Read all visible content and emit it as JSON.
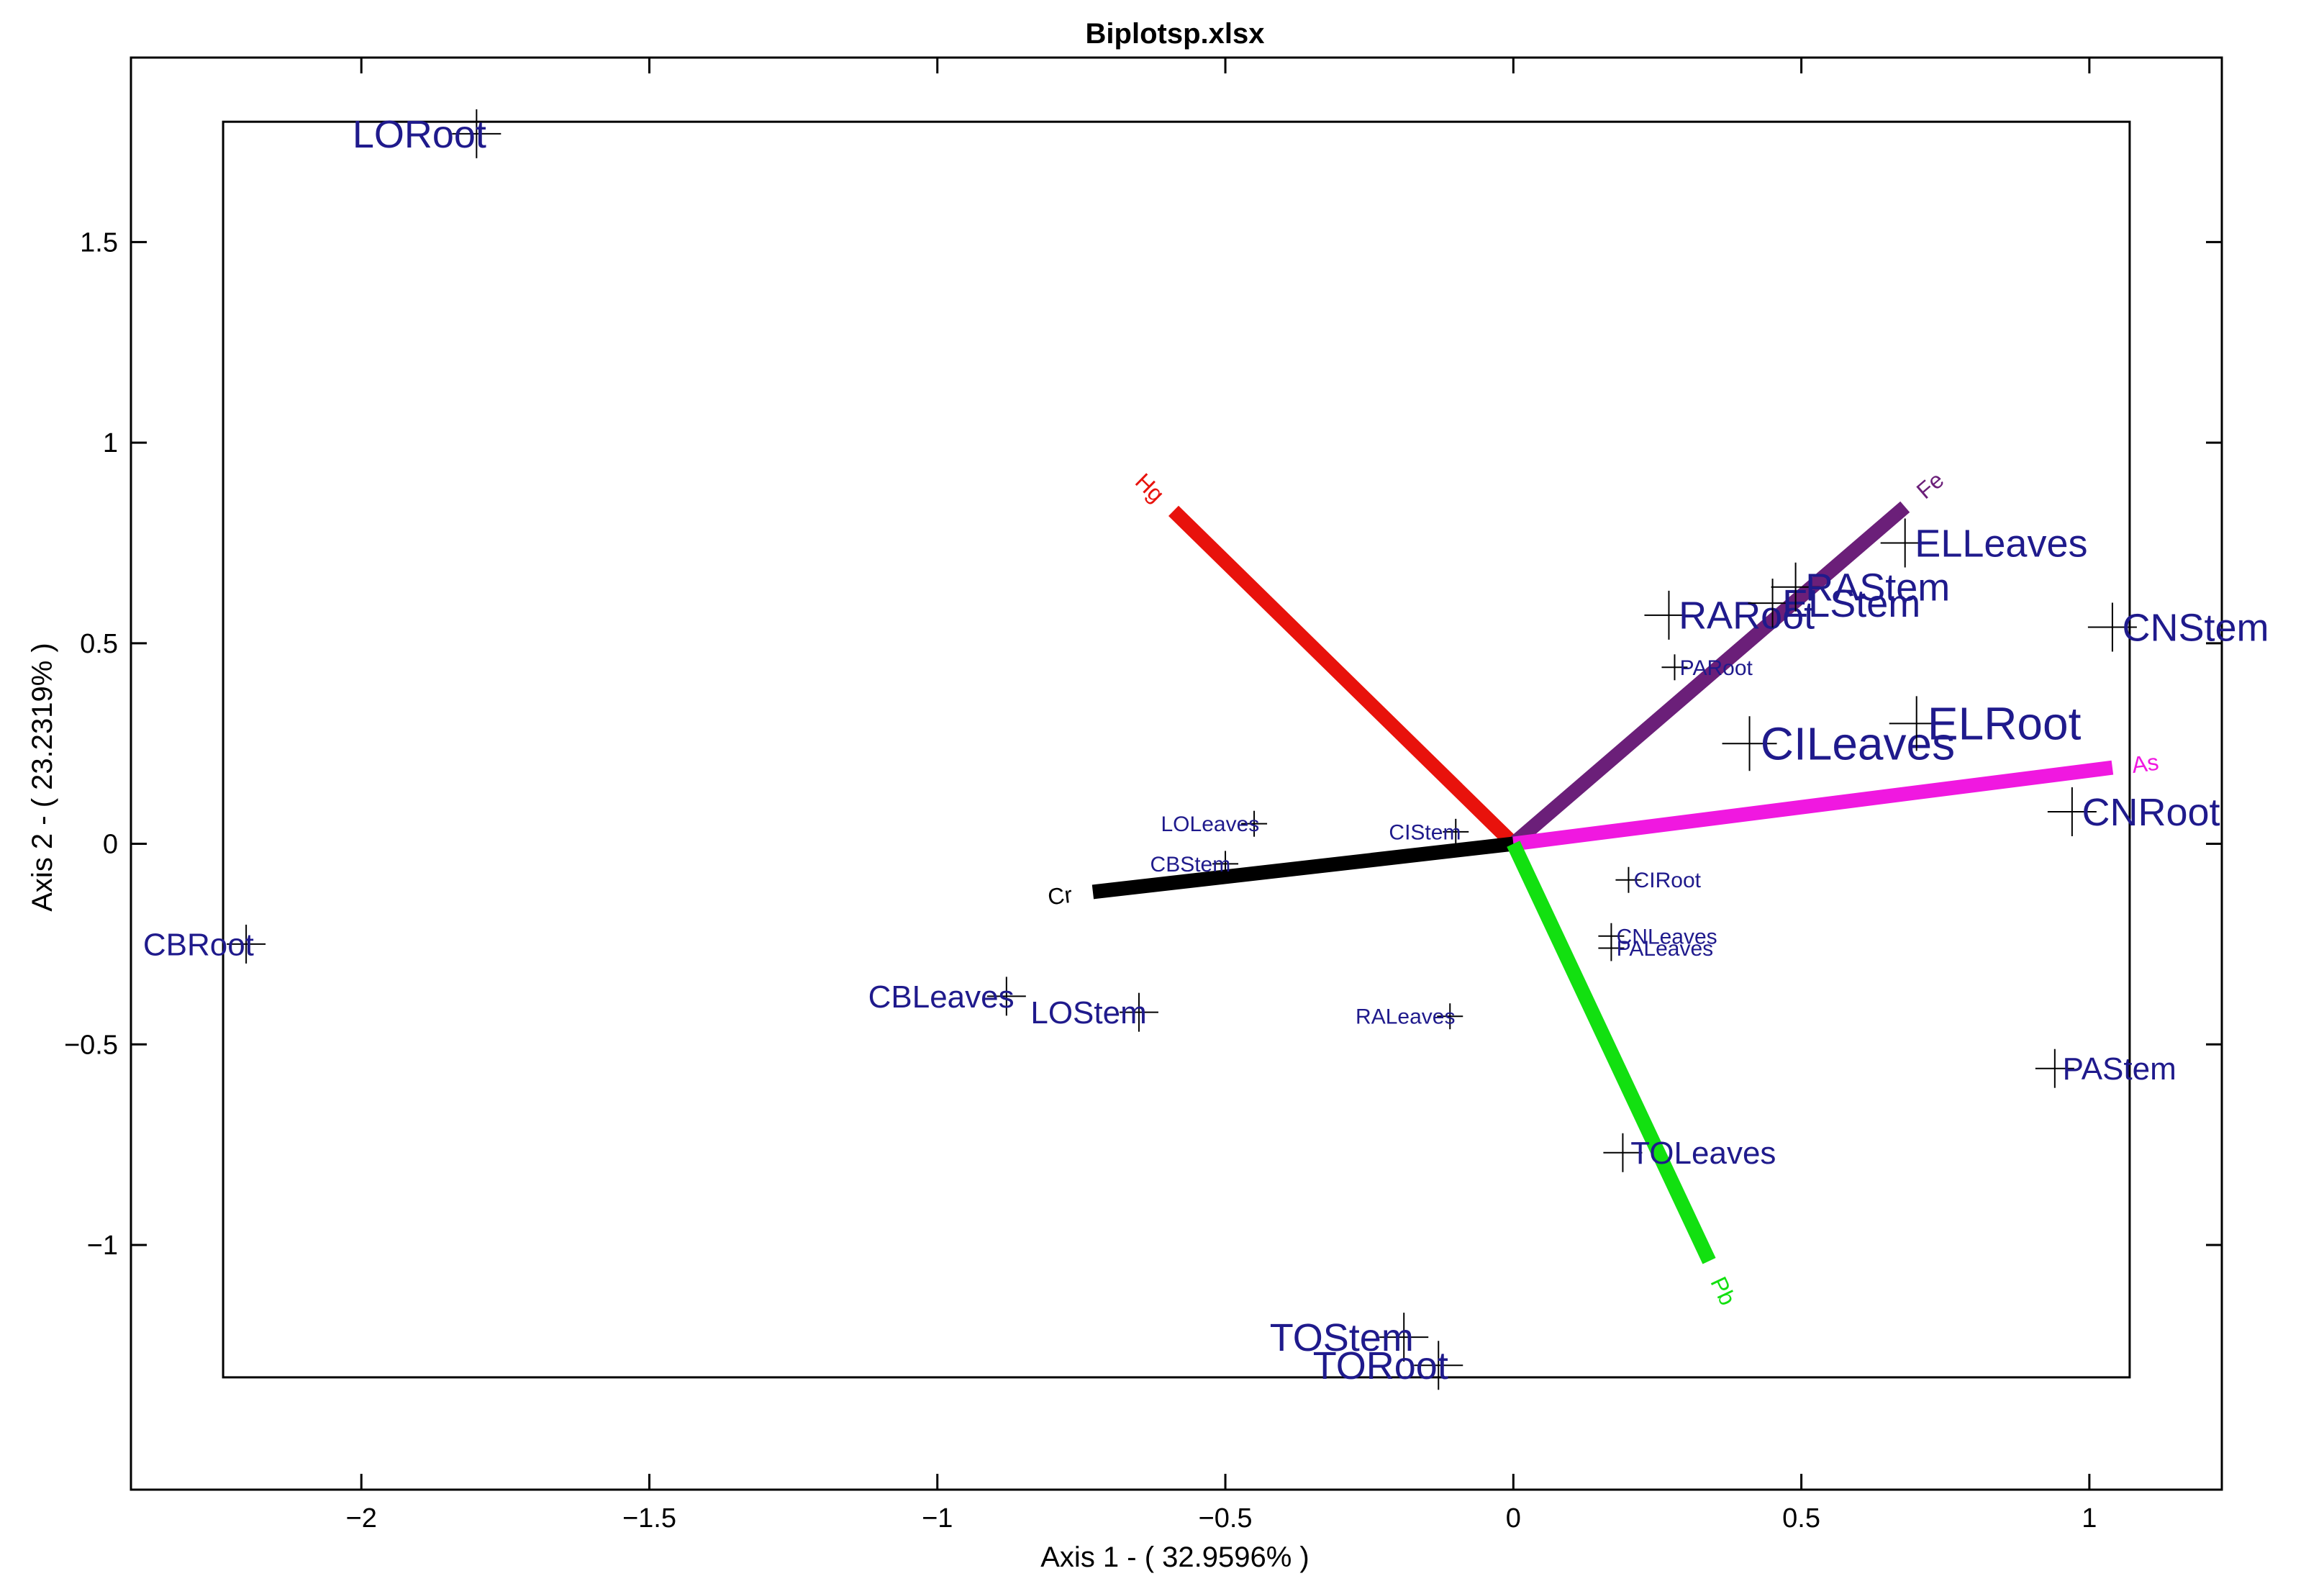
{
  "chart_data": {
    "type": "scatter",
    "title": "Biplotsp.xlsx",
    "xlabel": "Axis 1 - ( 32.9596% )",
    "ylabel": "Axis 2 - ( 23.2319% )",
    "xlim": [
      -2.4,
      1.23
    ],
    "ylim": [
      -1.61,
      1.96
    ],
    "x_ticks": [
      {
        "v": -2,
        "label": "−2"
      },
      {
        "v": -1.5,
        "label": "−1.5"
      },
      {
        "v": -1,
        "label": "−1"
      },
      {
        "v": -0.5,
        "label": "−0.5"
      },
      {
        "v": 0,
        "label": "0"
      },
      {
        "v": 0.5,
        "label": "0.5"
      },
      {
        "v": 1,
        "label": "1"
      }
    ],
    "y_ticks": [
      {
        "v": 1.5,
        "label": "1.5"
      },
      {
        "v": 1,
        "label": "1"
      },
      {
        "v": 0.5,
        "label": "0.5"
      },
      {
        "v": 0,
        "label": "0"
      },
      {
        "v": -0.5,
        "label": "−0.5"
      },
      {
        "v": -1,
        "label": "−1"
      }
    ],
    "inner_box": {
      "x": [
        -2.24,
        1.07
      ],
      "y": [
        -1.33,
        1.8
      ]
    },
    "grid": false,
    "label_color": "#1f1a8c",
    "points": [
      {
        "label": "LORoot",
        "x": -1.8,
        "y": 1.77,
        "size": "large"
      },
      {
        "label": "CBRoot",
        "x": -2.2,
        "y": -0.25,
        "size": "medium"
      },
      {
        "label": "CBLeaves",
        "x": -0.88,
        "y": -0.38,
        "size": "medium"
      },
      {
        "label": "LOStem",
        "x": -0.65,
        "y": -0.42,
        "size": "medium"
      },
      {
        "label": "LOLeaves",
        "x": -0.45,
        "y": 0.05,
        "size": "small"
      },
      {
        "label": "CBStem",
        "x": -0.5,
        "y": -0.05,
        "size": "small"
      },
      {
        "label": "CIStem",
        "x": -0.1,
        "y": 0.03,
        "size": "small"
      },
      {
        "label": "RALeaves",
        "x": -0.11,
        "y": -0.43,
        "size": "small"
      },
      {
        "label": "TOStem",
        "x": -0.19,
        "y": -1.23,
        "size": "large"
      },
      {
        "label": "TORoot",
        "x": -0.13,
        "y": -1.3,
        "size": "large"
      },
      {
        "label": "TOLeaves",
        "x": 0.19,
        "y": -0.77,
        "size": "medium"
      },
      {
        "label": "CIRoot",
        "x": 0.2,
        "y": -0.09,
        "size": "small"
      },
      {
        "label": "CNLeaves",
        "x": 0.17,
        "y": -0.23,
        "size": "small"
      },
      {
        "label": "PALeaves",
        "x": 0.17,
        "y": -0.26,
        "size": "small"
      },
      {
        "label": "PARoot",
        "x": 0.28,
        "y": 0.44,
        "size": "small"
      },
      {
        "label": "RARoot",
        "x": 0.27,
        "y": 0.57,
        "size": "large"
      },
      {
        "label": "ELStem",
        "x": 0.45,
        "y": 0.6,
        "size": "large"
      },
      {
        "label": "RAStem",
        "x": 0.49,
        "y": 0.64,
        "size": "large"
      },
      {
        "label": "CILeaves",
        "x": 0.41,
        "y": 0.25,
        "size": "xlarge"
      },
      {
        "label": "ELLeaves",
        "x": 0.68,
        "y": 0.75,
        "size": "large"
      },
      {
        "label": "ELRoot",
        "x": 0.7,
        "y": 0.3,
        "size": "xlarge"
      },
      {
        "label": "CNStem",
        "x": 1.04,
        "y": 0.54,
        "size": "large"
      },
      {
        "label": "CNRoot",
        "x": 0.97,
        "y": 0.08,
        "size": "large"
      },
      {
        "label": "PAStem",
        "x": 0.94,
        "y": -0.56,
        "size": "medium"
      }
    ],
    "vectors": [
      {
        "name": "Hg",
        "x": -0.59,
        "y": 0.83,
        "color": "#e8120c"
      },
      {
        "name": "Fe",
        "x": 0.68,
        "y": 0.84,
        "color": "#6b1f79"
      },
      {
        "name": "As",
        "x": 1.04,
        "y": 0.19,
        "color": "#f018e0"
      },
      {
        "name": "Cr",
        "x": -0.73,
        "y": -0.12,
        "color": "#000000"
      },
      {
        "name": "Pb",
        "x": 0.34,
        "y": -1.04,
        "color": "#12e010"
      }
    ]
  }
}
